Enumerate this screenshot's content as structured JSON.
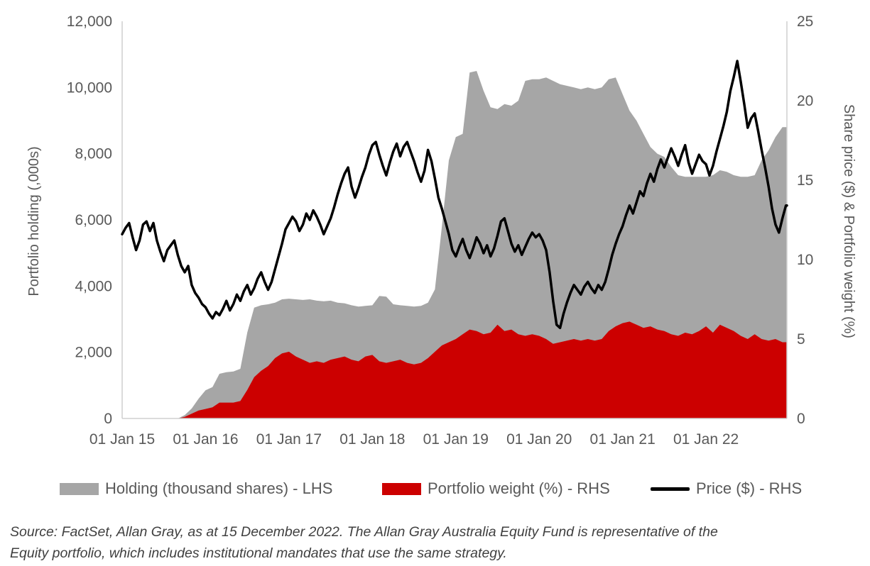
{
  "chart_data": {
    "type": "area-line-combo-dual-axis",
    "title": "",
    "x_axis": {
      "min": 2015.0,
      "max": 2022.97,
      "ticks": [
        {
          "v": 2015,
          "label": "01 Jan 15"
        },
        {
          "v": 2016,
          "label": "01 Jan 16"
        },
        {
          "v": 2017,
          "label": "01 Jan 17"
        },
        {
          "v": 2018,
          "label": "01 Jan 18"
        },
        {
          "v": 2019,
          "label": "01 Jan 19"
        },
        {
          "v": 2020,
          "label": "01 Jan 20"
        },
        {
          "v": 2021,
          "label": "01 Jan 21"
        },
        {
          "v": 2022,
          "label": "01 Jan 22"
        }
      ]
    },
    "left_axis": {
      "title": "Portfolio holding (,000s)",
      "min": 0,
      "max": 12000,
      "ticks": [
        {
          "v": 0,
          "label": "0"
        },
        {
          "v": 2000,
          "label": "2,000"
        },
        {
          "v": 4000,
          "label": "4,000"
        },
        {
          "v": 6000,
          "label": "6,000"
        },
        {
          "v": 8000,
          "label": "8,000"
        },
        {
          "v": 10000,
          "label": "10,000"
        },
        {
          "v": 12000,
          "label": "12,000"
        }
      ]
    },
    "right_axis": {
      "title": "Share price ($)  & Portfolio weight (%)",
      "min": 0,
      "max": 25,
      "ticks": [
        {
          "v": 0,
          "label": "0"
        },
        {
          "v": 5,
          "label": "5"
        },
        {
          "v": 10,
          "label": "10"
        },
        {
          "v": 15,
          "label": "15"
        },
        {
          "v": 20,
          "label": "20"
        },
        {
          "v": 25,
          "label": "25"
        }
      ]
    },
    "series": [
      {
        "name": "Holding (thousand shares) - LHS",
        "type": "area",
        "axis": "left",
        "color": "#a6a6a6",
        "x_start": 2015.0,
        "x_step": 0.0833333,
        "values": [
          0,
          0,
          0,
          0,
          0,
          0,
          0,
          0,
          0,
          100,
          300,
          600,
          850,
          950,
          1350,
          1400,
          1420,
          1500,
          2600,
          3350,
          3420,
          3450,
          3500,
          3600,
          3620,
          3600,
          3580,
          3600,
          3560,
          3540,
          3560,
          3500,
          3480,
          3420,
          3380,
          3400,
          3420,
          3700,
          3680,
          3450,
          3420,
          3400,
          3380,
          3400,
          3500,
          3900,
          5800,
          7800,
          8500,
          8600,
          10450,
          10500,
          9900,
          9400,
          9350,
          9500,
          9450,
          9600,
          10200,
          10250,
          10250,
          10300,
          10200,
          10100,
          10050,
          10000,
          9950,
          10000,
          9950,
          10000,
          10250,
          10300,
          9800,
          9300,
          9000,
          8600,
          8200,
          8000,
          7900,
          7600,
          7350,
          7300,
          7300,
          7300,
          7300,
          7350,
          7500,
          7450,
          7350,
          7300,
          7300,
          7350,
          7800,
          8100,
          8500,
          8800
        ]
      },
      {
        "name": "Portfolio weight (%) - RHS",
        "type": "area",
        "axis": "right",
        "color": "#cc0000",
        "x_start": 2015.0,
        "x_step": 0.0833333,
        "values": [
          0,
          0,
          0,
          0,
          0,
          0,
          0,
          0,
          0,
          0.1,
          0.3,
          0.5,
          0.6,
          0.7,
          1.0,
          1.0,
          1.0,
          1.1,
          1.8,
          2.6,
          3.0,
          3.3,
          3.8,
          4.1,
          4.2,
          3.9,
          3.7,
          3.5,
          3.6,
          3.5,
          3.7,
          3.8,
          3.9,
          3.7,
          3.6,
          3.9,
          4.0,
          3.6,
          3.5,
          3.6,
          3.7,
          3.5,
          3.4,
          3.5,
          3.8,
          4.2,
          4.6,
          4.8,
          5.0,
          5.3,
          5.6,
          5.5,
          5.3,
          5.4,
          5.9,
          5.5,
          5.6,
          5.3,
          5.2,
          5.3,
          5.2,
          5.0,
          4.7,
          4.8,
          4.9,
          5.0,
          4.9,
          5.0,
          4.9,
          5.0,
          5.5,
          5.8,
          6.0,
          6.1,
          5.9,
          5.7,
          5.8,
          5.6,
          5.5,
          5.3,
          5.2,
          5.4,
          5.3,
          5.5,
          5.8,
          5.4,
          5.9,
          5.7,
          5.5,
          5.2,
          5.0,
          5.3,
          5.0,
          4.9,
          5.0,
          4.8
        ]
      },
      {
        "name": "Price ($) - RHS",
        "type": "line",
        "axis": "right",
        "color": "#000000",
        "width": 3.5,
        "x_start": 2015.0,
        "x_step": 0.0416667,
        "values": [
          11.6,
          12.0,
          12.3,
          11.4,
          10.6,
          11.2,
          12.2,
          12.4,
          11.8,
          12.3,
          11.2,
          10.5,
          9.9,
          10.6,
          10.9,
          11.2,
          10.3,
          9.6,
          9.2,
          9.6,
          8.4,
          7.9,
          7.6,
          7.2,
          7.0,
          6.6,
          6.3,
          6.7,
          6.5,
          6.9,
          7.4,
          6.8,
          7.2,
          7.8,
          7.4,
          8.0,
          8.4,
          7.8,
          8.2,
          8.8,
          9.2,
          8.6,
          8.1,
          8.6,
          9.4,
          10.2,
          11.0,
          11.9,
          12.3,
          12.7,
          12.4,
          11.8,
          12.2,
          12.9,
          12.5,
          13.1,
          12.7,
          12.2,
          11.6,
          12.1,
          12.6,
          13.3,
          14.1,
          14.8,
          15.4,
          15.8,
          14.6,
          13.9,
          14.5,
          15.2,
          15.8,
          16.6,
          17.2,
          17.4,
          16.6,
          15.9,
          15.3,
          16.1,
          16.8,
          17.3,
          16.5,
          17.1,
          17.4,
          16.8,
          16.2,
          15.5,
          14.9,
          15.6,
          16.9,
          16.2,
          15.1,
          13.9,
          13.2,
          12.4,
          11.6,
          10.6,
          10.2,
          10.8,
          11.3,
          10.6,
          10.1,
          10.7,
          11.4,
          11.0,
          10.4,
          10.9,
          10.2,
          10.7,
          11.5,
          12.4,
          12.6,
          11.8,
          11.0,
          10.5,
          10.9,
          10.3,
          10.8,
          11.3,
          11.7,
          11.4,
          11.6,
          11.2,
          10.6,
          9.2,
          7.4,
          5.9,
          5.7,
          6.6,
          7.3,
          7.9,
          8.4,
          8.1,
          7.8,
          8.3,
          8.6,
          8.2,
          7.9,
          8.4,
          8.1,
          8.6,
          9.4,
          10.3,
          11.0,
          11.6,
          12.1,
          12.8,
          13.4,
          12.9,
          13.6,
          14.3,
          14.0,
          14.8,
          15.4,
          14.9,
          15.7,
          16.3,
          15.8,
          16.4,
          17.0,
          16.5,
          15.9,
          16.6,
          17.2,
          16.1,
          15.4,
          16.0,
          16.6,
          16.2,
          16.0,
          15.3,
          15.9,
          16.8,
          17.6,
          18.4,
          19.3,
          20.6,
          21.5,
          22.5,
          21.2,
          19.8,
          18.3,
          18.9,
          19.2,
          18.1,
          16.9,
          15.8,
          14.6,
          13.2,
          12.2,
          11.7,
          12.6,
          13.4
        ]
      }
    ],
    "legend": [
      {
        "label": "Holding (thousand shares) - LHS",
        "color": "#a6a6a6",
        "type": "area"
      },
      {
        "label": "Portfolio weight (%) - RHS",
        "color": "#cc0000",
        "type": "area"
      },
      {
        "label": "Price ($) - RHS",
        "color": "#000000",
        "type": "line"
      }
    ],
    "axis_line_color": "#cfcfcf",
    "tick_label_color": "#595959"
  },
  "source": {
    "line1": "Source: FactSet, Allan Gray, as at 15 December 2022. The Allan Gray Australia Equity Fund is representative of the",
    "line2": "Equity portfolio, which includes institutional mandates that use the same strategy."
  }
}
